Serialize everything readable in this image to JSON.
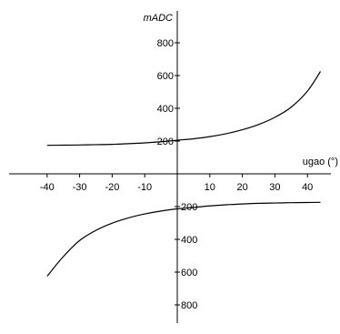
{
  "chart_data": {
    "type": "line",
    "xlabel": "ugao (°)",
    "ylabel": "mADC",
    "xlim": [
      -44,
      48
    ],
    "ylim": [
      -860,
      940
    ],
    "x_ticks": [
      -40,
      -30,
      -20,
      -10,
      10,
      20,
      30,
      40
    ],
    "y_ticks_positive": [
      200,
      400,
      600,
      800
    ],
    "y_ticks_negative": [
      -200,
      -400,
      -600,
      -800
    ],
    "y_tick_labels_positive": [
      "200",
      "400",
      "600",
      "800"
    ],
    "y_tick_labels_negative": [
      "200",
      "400",
      "600",
      "800"
    ],
    "grid": false,
    "series": [
      {
        "x": [
          -40,
          -35,
          -30,
          -25,
          -20,
          -15,
          -10,
          -5,
          0,
          5,
          10,
          15,
          20,
          25,
          30,
          35,
          40,
          44
        ],
        "y": [
          174,
          175,
          176,
          178,
          180,
          184,
          189,
          196,
          205,
          214,
          227,
          245,
          269,
          301,
          345,
          407,
          505,
          625
        ]
      },
      {
        "x": [
          -40,
          -35,
          -30,
          -25,
          -20,
          -15,
          -10,
          -5,
          0,
          5,
          10,
          15,
          20,
          25,
          30,
          35,
          40,
          44
        ],
        "y": [
          -625,
          -505,
          -407,
          -345,
          -301,
          -269,
          -245,
          -227,
          -214,
          -205,
          -196,
          -189,
          -184,
          -180,
          -178,
          -176,
          -175,
          -174
        ]
      }
    ]
  }
}
